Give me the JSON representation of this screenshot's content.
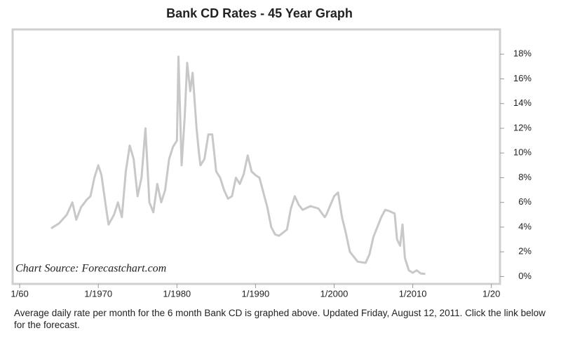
{
  "chart_data": {
    "type": "line",
    "title": "Bank CD Rates - 45 Year Graph",
    "annotation": "Chart Source: Forecastchart.com",
    "footnote": "Average daily rate per month for the 6 month Bank CD is graphed above. Updated Friday, August 12, 2011. Click the link below for the forecast.",
    "xlim": [
      1959.1,
      2021.1
    ],
    "ylim": [
      -0.6,
      20
    ],
    "xticks": [
      {
        "value": 1960,
        "label": "1/60"
      },
      {
        "value": 1970,
        "label": "1/1970"
      },
      {
        "value": 1980,
        "label": "1/1980"
      },
      {
        "value": 1990,
        "label": "1/1990"
      },
      {
        "value": 2000,
        "label": "1/2000"
      },
      {
        "value": 2010,
        "label": "1/2010"
      },
      {
        "value": 2020,
        "label": "1/20"
      }
    ],
    "yticks": [
      {
        "value": 0,
        "label": "0%"
      },
      {
        "value": 2,
        "label": "2%"
      },
      {
        "value": 4,
        "label": "4%"
      },
      {
        "value": 6,
        "label": "6%"
      },
      {
        "value": 8,
        "label": "8%"
      },
      {
        "value": 10,
        "label": "10%"
      },
      {
        "value": 12,
        "label": "12%"
      },
      {
        "value": 14,
        "label": "14%"
      },
      {
        "value": 16,
        "label": "16%"
      },
      {
        "value": 18,
        "label": "18%"
      }
    ],
    "grid": false,
    "series": [
      {
        "color": "#c8c8c8",
        "x": [
          1964.0,
          1965.0,
          1966.0,
          1966.7,
          1967.2,
          1967.8,
          1968.5,
          1969.0,
          1969.5,
          1970.0,
          1970.4,
          1971.0,
          1971.3,
          1972.0,
          1972.5,
          1973.0,
          1973.5,
          1974.0,
          1974.5,
          1975.0,
          1975.5,
          1976.0,
          1976.5,
          1977.0,
          1977.5,
          1978.0,
          1978.5,
          1979.0,
          1979.5,
          1980.0,
          1980.2,
          1980.6,
          1981.0,
          1981.3,
          1981.7,
          1982.0,
          1982.5,
          1982.8,
          1983.0,
          1983.5,
          1984.0,
          1984.5,
          1985.0,
          1985.5,
          1986.0,
          1986.5,
          1987.0,
          1987.5,
          1988.0,
          1988.5,
          1989.0,
          1989.5,
          1990.0,
          1990.5,
          1991.0,
          1991.5,
          1992.0,
          1992.5,
          1993.0,
          1994.0,
          1994.5,
          1995.0,
          1995.5,
          1996.0,
          1997.0,
          1998.0,
          1998.8,
          1999.0,
          2000.0,
          2000.5,
          2001.0,
          2001.5,
          2002.0,
          2003.0,
          2004.0,
          2004.5,
          2005.0,
          2006.0,
          2006.5,
          2007.0,
          2007.7,
          2008.0,
          2008.4,
          2008.7,
          2009.0,
          2009.5,
          2010.0,
          2010.5,
          2011.0,
          2011.6
        ],
        "values": [
          3.9,
          4.3,
          5.0,
          6.0,
          4.6,
          5.6,
          6.2,
          6.5,
          8.0,
          9.0,
          8.2,
          5.5,
          4.2,
          5.0,
          6.0,
          4.8,
          8.5,
          10.6,
          9.5,
          6.5,
          8.0,
          12.0,
          6.0,
          5.2,
          7.5,
          6.0,
          7.0,
          9.5,
          10.5,
          11.0,
          17.8,
          9.0,
          13.0,
          17.3,
          15.0,
          16.5,
          12.0,
          10.0,
          9.0,
          9.5,
          11.5,
          11.5,
          8.5,
          8.0,
          7.0,
          6.3,
          6.5,
          8.0,
          7.5,
          8.3,
          9.8,
          8.5,
          8.2,
          8.0,
          6.8,
          5.6,
          4.0,
          3.4,
          3.3,
          3.8,
          5.5,
          6.5,
          5.8,
          5.4,
          5.7,
          5.5,
          4.8,
          5.0,
          6.5,
          6.8,
          4.8,
          3.5,
          2.0,
          1.2,
          1.1,
          1.8,
          3.2,
          4.8,
          5.4,
          5.3,
          5.1,
          3.0,
          2.5,
          4.2,
          1.5,
          0.5,
          0.3,
          0.5,
          0.25,
          0.2
        ]
      }
    ]
  }
}
